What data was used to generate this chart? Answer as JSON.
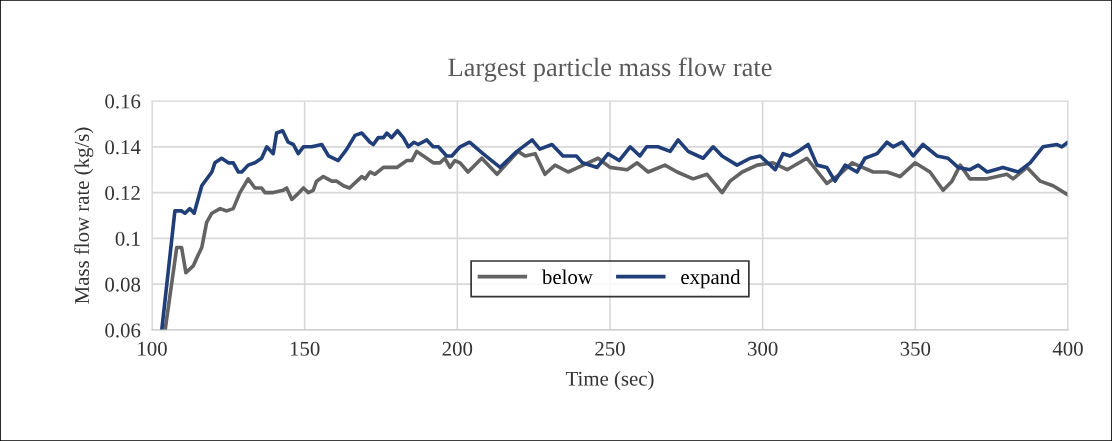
{
  "chart_data": {
    "type": "line",
    "title": "Largest particle mass flow rate",
    "xlabel": "Time (sec)",
    "ylabel": "Mass flow rate (kg/s)",
    "xlim": [
      100,
      400
    ],
    "xticks": [
      100,
      150,
      200,
      250,
      300,
      350,
      400
    ],
    "ylim": [
      0.06,
      0.16
    ],
    "yticks": [
      {
        "value": 0.06,
        "label": "0.06"
      },
      {
        "value": 0.08,
        "label": "0.08"
      },
      {
        "value": 0.1,
        "label": "0.1"
      },
      {
        "value": 0.12,
        "label": "0.12"
      },
      {
        "value": 0.14,
        "label": "0.14"
      },
      {
        "value": 0.16,
        "label": "0.16"
      }
    ],
    "grid": true,
    "legend": "bottom",
    "marker": "none",
    "line_style": "solid",
    "series": [
      {
        "name": "below",
        "color": "#636363",
        "x": [
          104.3,
          108.1,
          109.7,
          111.1,
          113.5,
          115.2,
          116.3,
          117.9,
          119.6,
          122.3,
          124.5,
          126.6,
          128.8,
          131.5,
          133.7,
          135.9,
          137,
          139.7,
          143,
          144.1,
          145.8,
          147.4,
          149.6,
          151.2,
          152.8,
          153.9,
          156.1,
          158.9,
          160.5,
          162.7,
          164.7,
          167.1,
          168.7,
          169.8,
          171.4,
          173,
          175.8,
          177.4,
          180.2,
          183.5,
          185.1,
          186.7,
          188.9,
          192.1,
          194.3,
          195.9,
          197.6,
          199.2,
          200.9,
          203.5,
          208,
          213,
          219.9,
          222.2,
          225.5,
          228.7,
          232,
          236.3,
          241.2,
          246.1,
          250,
          255.6,
          258.9,
          262.5,
          268,
          272,
          277.2,
          281.8,
          286.7,
          289.3,
          293.3,
          298.2,
          303.4,
          308,
          314.5,
          321,
          325.3,
          329.3,
          336.2,
          340.7,
          345,
          349.9,
          354.8,
          359.1,
          362,
          364.7,
          367.9,
          373.5,
          380,
          382,
          386.6,
          390.9,
          395.1,
          400
        ],
        "values": [
          0.06,
          0.096,
          0.096,
          0.085,
          0.088,
          0.093,
          0.096,
          0.107,
          0.111,
          0.113,
          0.112,
          0.113,
          0.12,
          0.126,
          0.122,
          0.122,
          0.12,
          0.12,
          0.121,
          0.122,
          0.117,
          0.119,
          0.122,
          0.12,
          0.121,
          0.125,
          0.127,
          0.125,
          0.125,
          0.123,
          0.122,
          0.125,
          0.127,
          0.126,
          0.129,
          0.128,
          0.131,
          0.131,
          0.131,
          0.134,
          0.134,
          0.138,
          0.136,
          0.133,
          0.133,
          0.135,
          0.131,
          0.134,
          0.133,
          0.129,
          0.135,
          0.128,
          0.138,
          0.136,
          0.137,
          0.128,
          0.132,
          0.129,
          0.132,
          0.135,
          0.131,
          0.13,
          0.133,
          0.129,
          0.132,
          0.129,
          0.126,
          0.128,
          0.12,
          0.125,
          0.129,
          0.132,
          0.133,
          0.13,
          0.135,
          0.124,
          0.128,
          0.133,
          0.129,
          0.129,
          0.127,
          0.133,
          0.129,
          0.121,
          0.125,
          0.132,
          0.126,
          0.126,
          0.128,
          0.126,
          0.131,
          0.125,
          0.123,
          0.119
        ]
      },
      {
        "name": "expand",
        "color": "#203f78",
        "x": [
          103.2,
          107.5,
          109.7,
          110.8,
          112.4,
          113.8,
          116.3,
          119.6,
          120.6,
          122.8,
          125,
          126.6,
          128.3,
          129.4,
          131.5,
          133.7,
          135.9,
          137.6,
          139.7,
          140.8,
          142.8,
          144.6,
          146.3,
          147.9,
          149.6,
          152.3,
          155.6,
          157.8,
          161,
          163.8,
          166.5,
          168.7,
          171.4,
          172.5,
          174.1,
          175.8,
          176.9,
          178.5,
          180.4,
          182.3,
          184,
          185.8,
          187.2,
          190,
          192.1,
          193.8,
          196.5,
          198.2,
          200.9,
          204,
          208.4,
          214,
          219.5,
          224.5,
          227,
          231,
          234.6,
          239,
          241,
          245.8,
          249.4,
          253,
          256.6,
          259.8,
          262,
          265.7,
          269.7,
          272.3,
          275.6,
          280.5,
          283.8,
          286.7,
          291.6,
          295.9,
          299.2,
          304.1,
          306.7,
          309,
          311.6,
          314.9,
          317.8,
          321,
          323.7,
          327,
          330.9,
          333.5,
          337.5,
          340.7,
          342.7,
          345.7,
          349.3,
          352.5,
          357.1,
          360.7,
          364,
          367.9,
          370.6,
          373.5,
          378.7,
          383.7,
          387.6,
          391.8,
          396.4,
          398,
          400
        ],
        "values": [
          0.06,
          0.112,
          0.112,
          0.111,
          0.113,
          0.111,
          0.123,
          0.129,
          0.133,
          0.135,
          0.133,
          0.133,
          0.129,
          0.129,
          0.132,
          0.133,
          0.135,
          0.14,
          0.137,
          0.146,
          0.147,
          0.142,
          0.141,
          0.137,
          0.14,
          0.14,
          0.141,
          0.136,
          0.134,
          0.139,
          0.145,
          0.146,
          0.142,
          0.141,
          0.144,
          0.144,
          0.146,
          0.144,
          0.147,
          0.144,
          0.14,
          0.142,
          0.141,
          0.143,
          0.14,
          0.14,
          0.136,
          0.136,
          0.14,
          0.142,
          0.137,
          0.131,
          0.138,
          0.143,
          0.139,
          0.141,
          0.136,
          0.136,
          0.133,
          0.131,
          0.137,
          0.134,
          0.14,
          0.136,
          0.14,
          0.14,
          0.138,
          0.143,
          0.138,
          0.135,
          0.14,
          0.136,
          0.132,
          0.135,
          0.136,
          0.13,
          0.137,
          0.136,
          0.138,
          0.141,
          0.132,
          0.131,
          0.125,
          0.132,
          0.129,
          0.135,
          0.137,
          0.142,
          0.14,
          0.142,
          0.136,
          0.141,
          0.136,
          0.135,
          0.131,
          0.13,
          0.132,
          0.129,
          0.131,
          0.129,
          0.133,
          0.14,
          0.141,
          0.14,
          0.142
        ]
      }
    ]
  }
}
